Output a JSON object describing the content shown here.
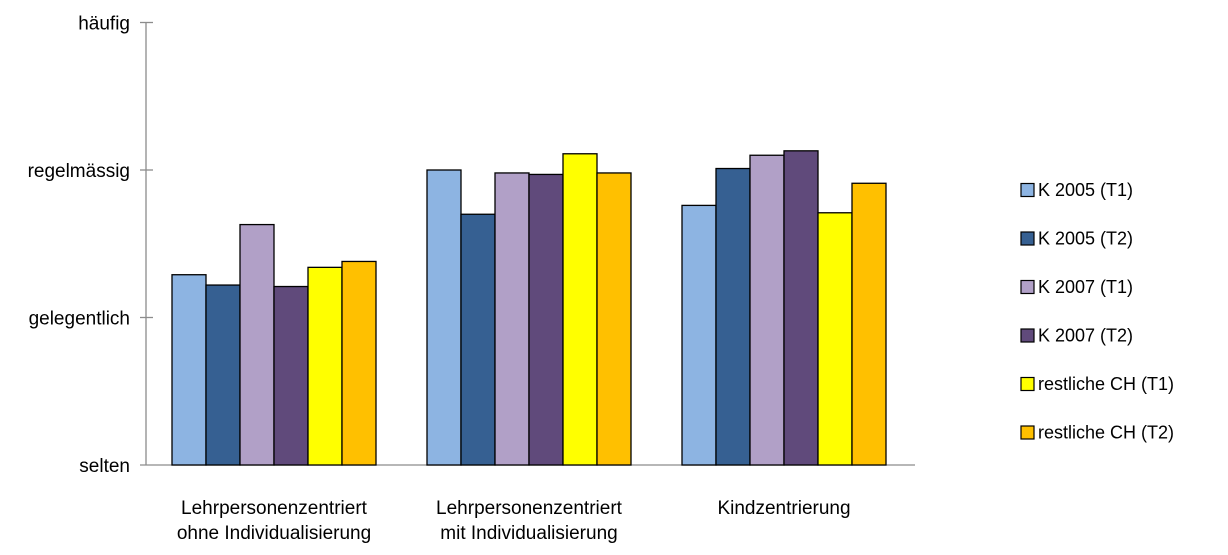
{
  "chart_data": {
    "type": "bar",
    "title": "",
    "xlabel": "",
    "ylabel": "",
    "y_tick_labels": [
      "selten",
      "gelegentlich",
      "regelmässig",
      "häufig"
    ],
    "ylim": [
      0,
      3
    ],
    "categories": [
      [
        "Lehrpersonenzentriert",
        "ohne Individualisierung"
      ],
      [
        "Lehrpersonenzentriert",
        "mit Individualisierung"
      ],
      [
        "Kindzentrierung"
      ]
    ],
    "series": [
      {
        "name": "K 2005 (T1)",
        "color": "#8DB4E2",
        "values": [
          1.29,
          2.0,
          1.76
        ]
      },
      {
        "name": "K 2005 (T2)",
        "color": "#366092",
        "values": [
          1.22,
          1.7,
          2.01
        ]
      },
      {
        "name": "K 2007 (T1)",
        "color": "#B1A0C7",
        "values": [
          1.63,
          1.98,
          2.1
        ]
      },
      {
        "name": "K 2007 (T2)",
        "color": "#604A7B",
        "values": [
          1.21,
          1.97,
          2.13
        ]
      },
      {
        "name": "restliche CH (T1)",
        "color": "#FFFF00",
        "values": [
          1.34,
          2.11,
          1.71
        ]
      },
      {
        "name": "restliche CH (T2)",
        "color": "#FFC000",
        "values": [
          1.38,
          1.98,
          1.91
        ]
      }
    ],
    "grid": false,
    "legend_position": "right"
  }
}
